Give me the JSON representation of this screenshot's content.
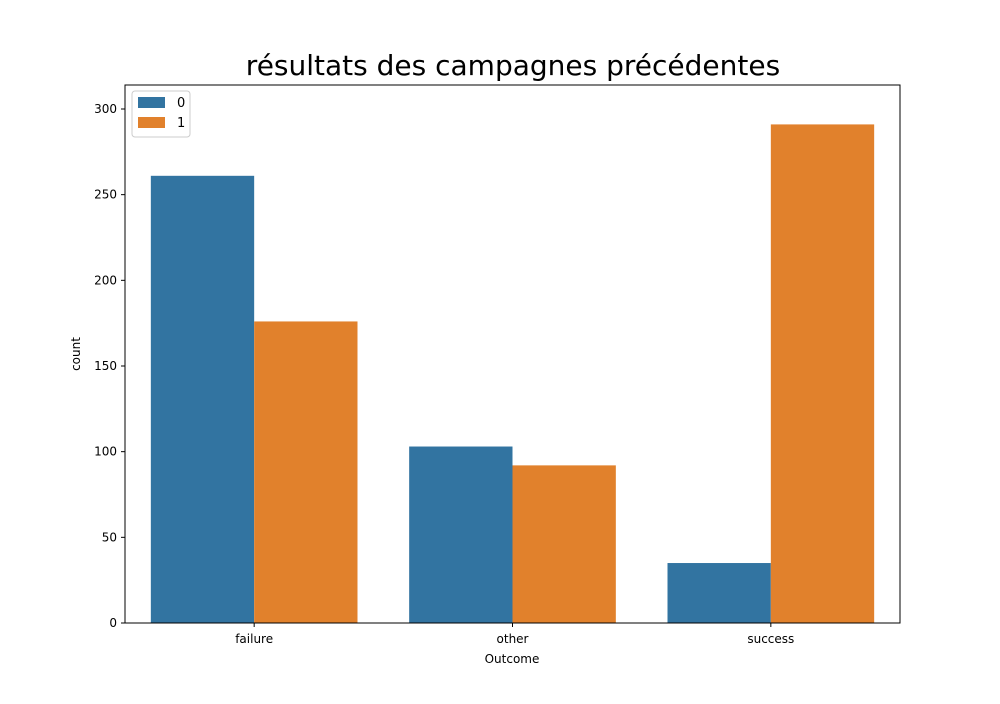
{
  "chart_data": {
    "type": "bar",
    "title": "résultats des campagnes précédentes",
    "xlabel": "Outcome",
    "ylabel": "count",
    "categories": [
      "failure",
      "other",
      "success"
    ],
    "series": [
      {
        "name": "0",
        "values": [
          261,
          103,
          35
        ],
        "color": "#3274a1"
      },
      {
        "name": "1",
        "values": [
          176,
          92,
          291
        ],
        "color": "#e1812c"
      }
    ],
    "ylim": [
      0,
      314
    ],
    "yticks": [
      0,
      50,
      100,
      150,
      200,
      250,
      300
    ],
    "grid": false,
    "legend_position": "top-left"
  }
}
